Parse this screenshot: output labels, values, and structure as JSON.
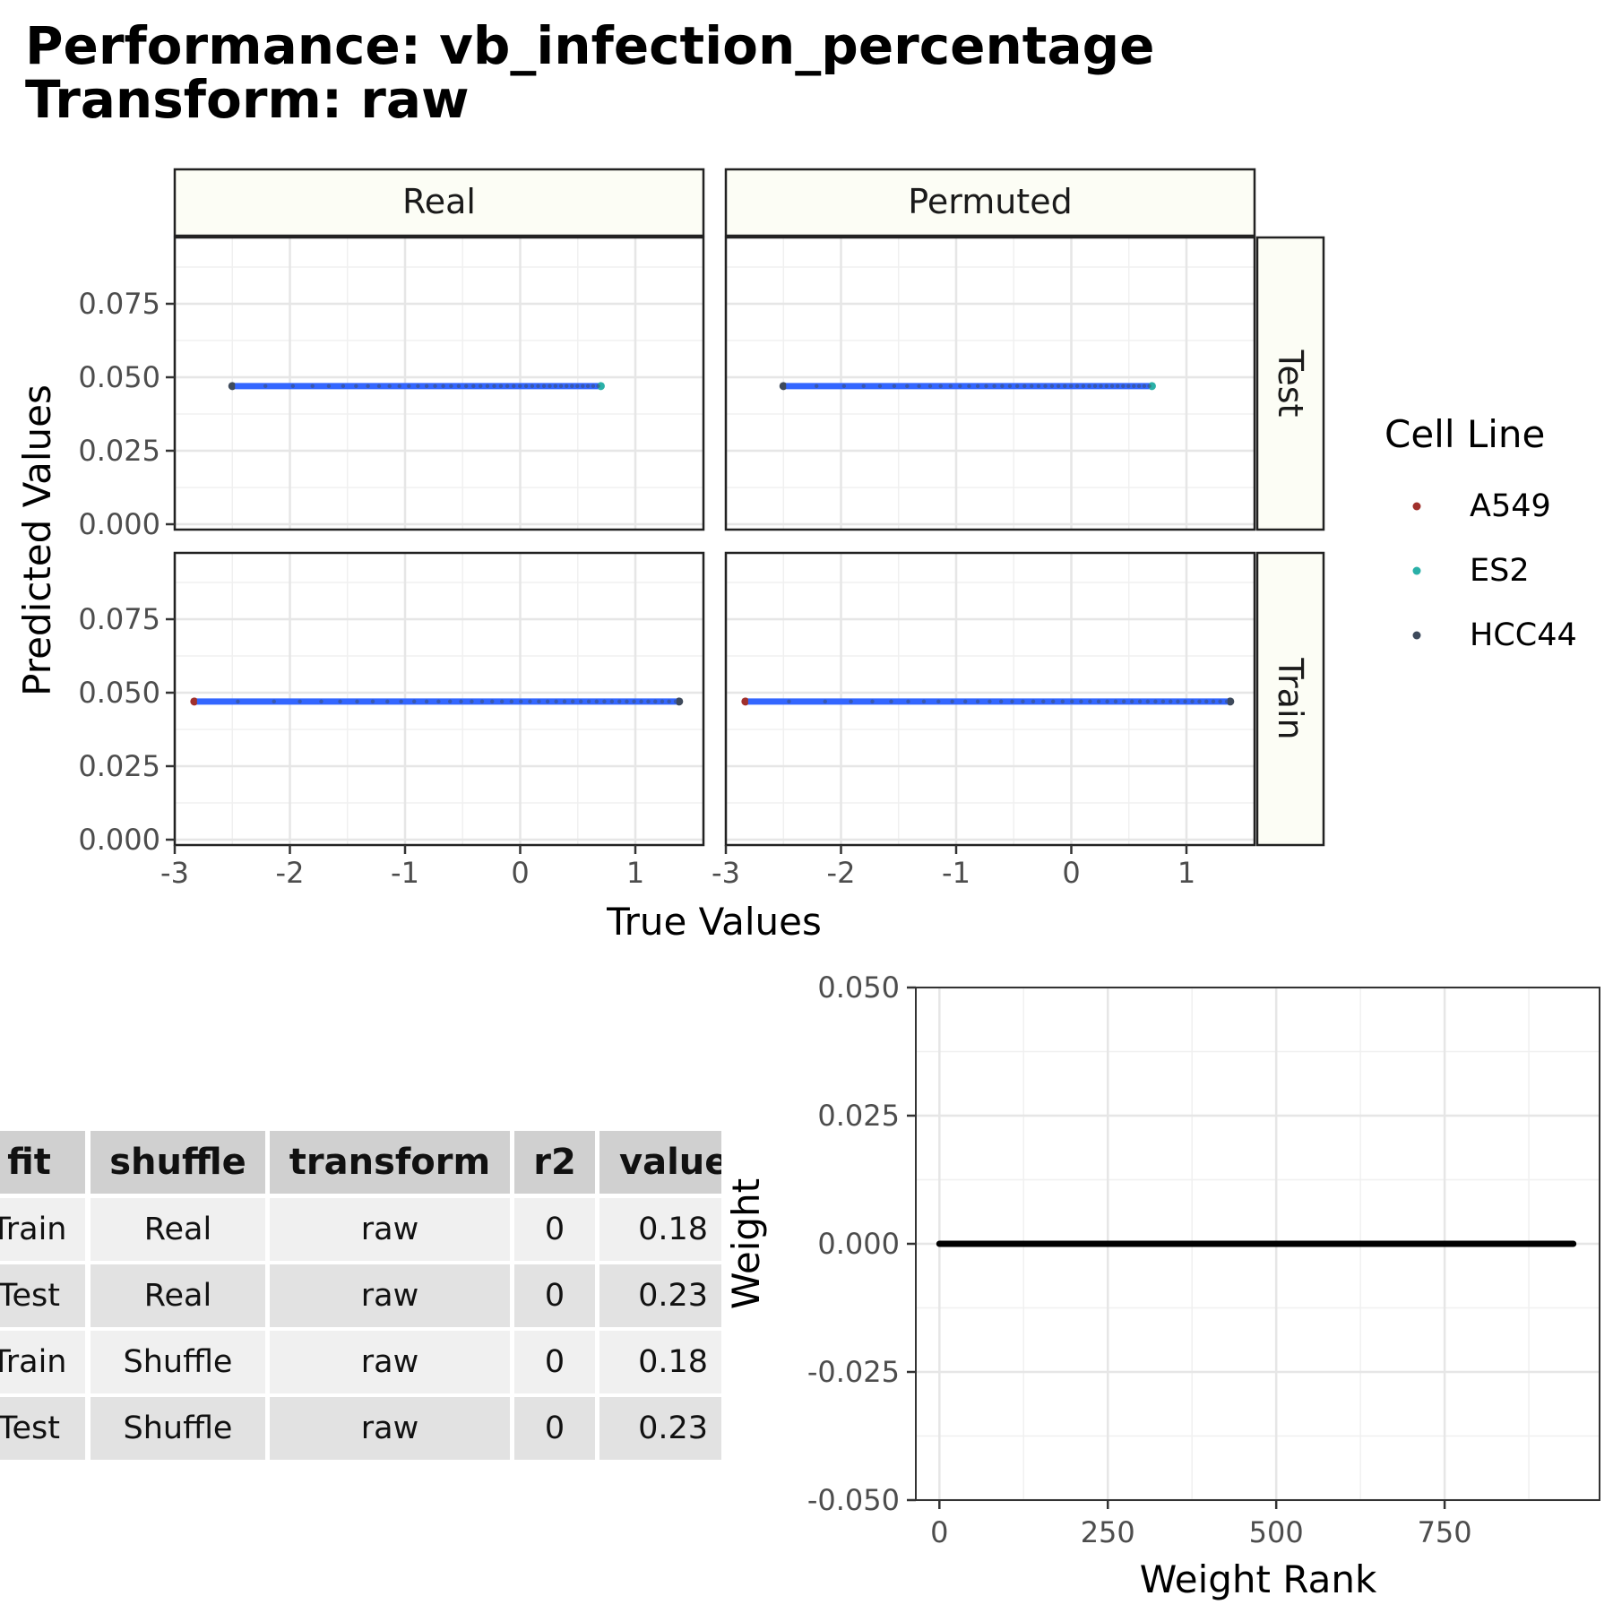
{
  "title_line1": "Performance: vb_infection_percentage",
  "title_line2": "Transform: raw",
  "chart_data": [
    {
      "type": "scatter",
      "facet_columns": [
        "Real",
        "Permuted"
      ],
      "facet_rows": [
        "Test",
        "Train"
      ],
      "xlabel": "True Values",
      "ylabel": "Predicted Values",
      "xlim": [
        -3,
        1.5
      ],
      "ylim": [
        0,
        0.1
      ],
      "xticks": [
        "-3",
        "-2",
        "-1",
        "0",
        "1"
      ],
      "yticks": [
        "0.000",
        "0.025",
        "0.050",
        "0.075"
      ],
      "legend": {
        "title": "Cell Line",
        "placement": "right",
        "entries": [
          {
            "name": "A549",
            "color": "#a0302c"
          },
          {
            "name": "ES2",
            "color": "#2ab0a8"
          },
          {
            "name": "HCC44",
            "color": "#3e4a5c"
          }
        ]
      },
      "fit_line_color": "#3366ff",
      "panels": [
        {
          "col": "Real",
          "row": "Test",
          "x_range": [
            -2.5,
            0.7
          ],
          "y": 0.047
        },
        {
          "col": "Permuted",
          "row": "Test",
          "x_range": [
            -2.5,
            0.7
          ],
          "y": 0.047
        },
        {
          "col": "Real",
          "row": "Train",
          "x_range": [
            -2.83,
            1.38
          ],
          "y": 0.047
        },
        {
          "col": "Permuted",
          "row": "Train",
          "x_range": [
            -2.83,
            1.38
          ],
          "y": 0.047
        }
      ],
      "grid": true
    },
    {
      "type": "table",
      "columns": [
        "fit",
        "shuffle",
        "transform",
        "r2",
        "value"
      ],
      "rows": [
        [
          "Train",
          "Real",
          "raw",
          "0",
          "0.18"
        ],
        [
          "Test",
          "Real",
          "raw",
          "0",
          "0.23"
        ],
        [
          "Train",
          "Shuffle",
          "raw",
          "0",
          "0.18"
        ],
        [
          "Test",
          "Shuffle",
          "raw",
          "0",
          "0.23"
        ]
      ]
    },
    {
      "type": "line",
      "xlabel": "Weight Rank",
      "ylabel": "Weight",
      "xlim": [
        -35,
        980
      ],
      "ylim": [
        -0.05,
        0.05
      ],
      "xticks": [
        "0",
        "250",
        "500",
        "750"
      ],
      "yticks": [
        "-0.050",
        "-0.025",
        "0.000",
        "0.025",
        "0.050"
      ],
      "series": [
        {
          "x": [
            0,
            941
          ],
          "y": [
            0,
            0
          ],
          "color": "#000000"
        }
      ],
      "grid": true
    }
  ]
}
